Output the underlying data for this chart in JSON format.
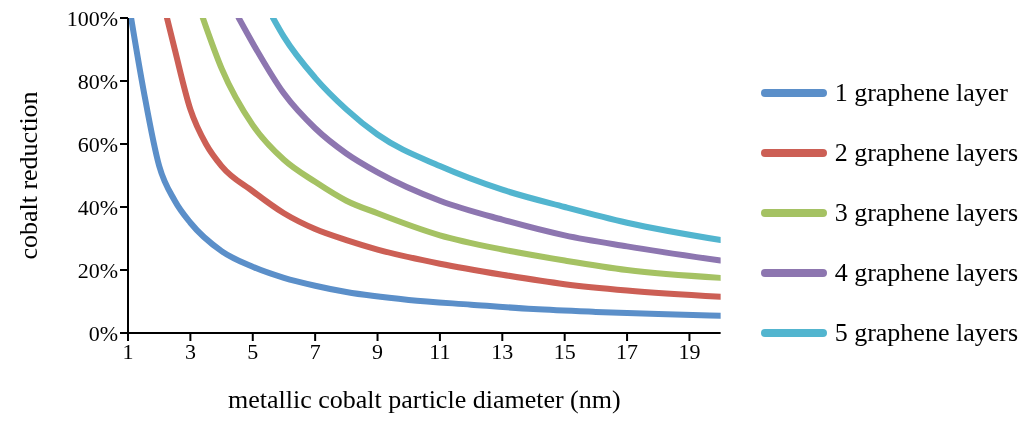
{
  "chart_data": {
    "type": "line",
    "xlabel": "metallic cobalt particle diameter (nm)",
    "ylabel": "cobalt  reduction",
    "xlim": [
      1,
      20
    ],
    "xticks": [
      1,
      3,
      5,
      7,
      9,
      11,
      13,
      15,
      17,
      19
    ],
    "ylim": [
      0,
      100
    ],
    "yticks": [
      {
        "value": 0,
        "label": "0%"
      },
      {
        "value": 20,
        "label": "20%"
      },
      {
        "value": 40,
        "label": "40%"
      },
      {
        "value": 60,
        "label": "60%"
      },
      {
        "value": 80,
        "label": "80%"
      },
      {
        "value": 100,
        "label": "100%"
      }
    ],
    "grid": false,
    "legend": "right",
    "marker": "none",
    "line_style": "solid",
    "series": [
      {
        "name": "1 graphene layer",
        "color": "#5b8fc9",
        "x": [
          1.1,
          1.5,
          2,
          2.5,
          3,
          4,
          5,
          6,
          7,
          8,
          10,
          12,
          14,
          16,
          18,
          20
        ],
        "values": [
          100,
          77,
          53,
          42,
          35,
          26,
          21,
          17.5,
          15,
          13,
          10.5,
          9,
          7.6,
          6.7,
          6,
          5.5
        ]
      },
      {
        "name": "2 graphene layers",
        "color": "#cc5f55",
        "x": [
          2.25,
          2.5,
          3,
          3.5,
          4,
          5,
          6,
          7,
          8,
          9,
          11,
          13,
          15,
          17,
          20
        ],
        "values": [
          100,
          90,
          71,
          60,
          53,
          45,
          38,
          33,
          29.5,
          26.5,
          22,
          18.5,
          15.5,
          13.5,
          11.5
        ]
      },
      {
        "name": "3 graphene layers",
        "color": "#a5c263",
        "x": [
          3.4,
          4,
          5,
          6,
          7,
          8,
          9,
          11,
          13,
          15,
          17,
          20
        ],
        "values": [
          100,
          84,
          66,
          55,
          48,
          42,
          38,
          31,
          26.5,
          23,
          20,
          17.5
        ]
      },
      {
        "name": "4 graphene layers",
        "color": "#8d76b0",
        "x": [
          4.55,
          5,
          6,
          7,
          8,
          9,
          11,
          13,
          15,
          17,
          20
        ],
        "values": [
          100,
          92,
          76,
          65,
          57,
          51,
          42,
          36,
          31,
          27.5,
          23
        ]
      },
      {
        "name": "5 graphene layers",
        "color": "#52b5cf",
        "x": [
          5.65,
          6,
          7,
          8,
          9,
          11,
          13,
          15,
          17,
          20
        ],
        "values": [
          100,
          94,
          81,
          71,
          63,
          53,
          45.5,
          40,
          35,
          29.5
        ]
      }
    ]
  }
}
